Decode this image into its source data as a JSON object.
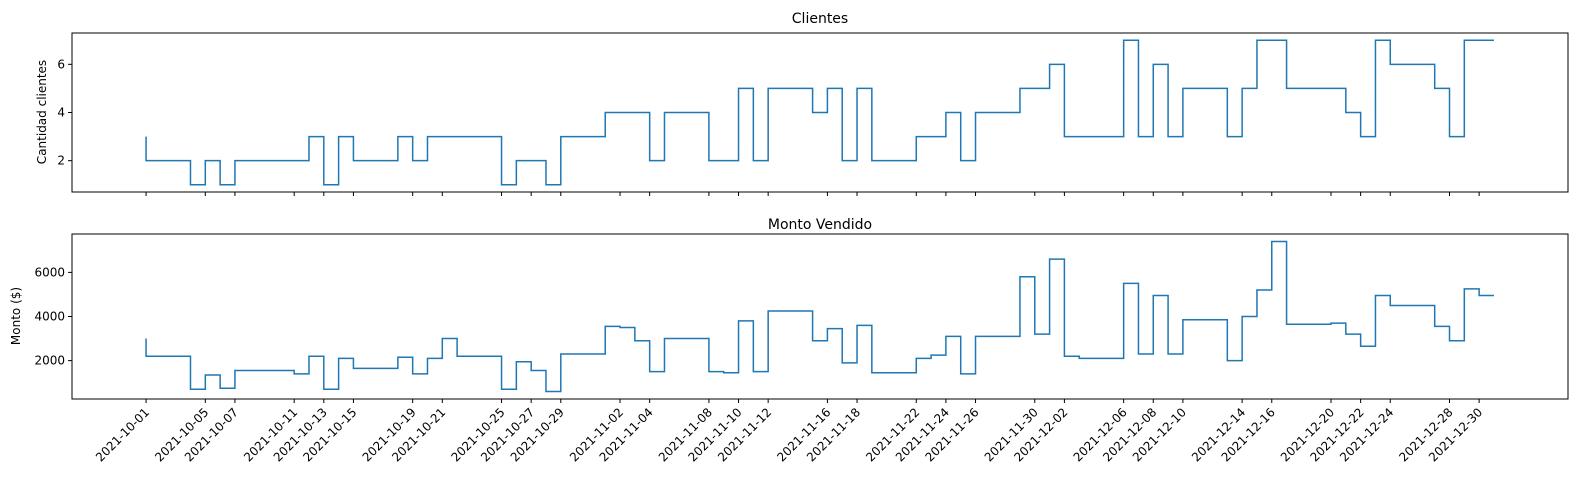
{
  "chart_data": [
    {
      "type": "line",
      "drawstyle": "steps-pre",
      "title": "Clientes",
      "ylabel": "Cantidad clientes",
      "x": [
        "2021-10-01",
        "2021-10-04",
        "2021-10-05",
        "2021-10-06",
        "2021-10-07",
        "2021-10-08",
        "2021-10-11",
        "2021-10-12",
        "2021-10-13",
        "2021-10-14",
        "2021-10-15",
        "2021-10-18",
        "2021-10-19",
        "2021-10-20",
        "2021-10-21",
        "2021-10-22",
        "2021-10-25",
        "2021-10-26",
        "2021-10-27",
        "2021-10-28",
        "2021-10-29",
        "2021-11-01",
        "2021-11-02",
        "2021-11-03",
        "2021-11-04",
        "2021-11-05",
        "2021-11-08",
        "2021-11-09",
        "2021-11-10",
        "2021-11-11",
        "2021-11-12",
        "2021-11-15",
        "2021-11-16",
        "2021-11-17",
        "2021-11-18",
        "2021-11-19",
        "2021-11-22",
        "2021-11-23",
        "2021-11-24",
        "2021-11-25",
        "2021-11-26",
        "2021-11-29",
        "2021-11-30",
        "2021-12-01",
        "2021-12-02",
        "2021-12-03",
        "2021-12-06",
        "2021-12-07",
        "2021-12-08",
        "2021-12-09",
        "2021-12-10",
        "2021-12-13",
        "2021-12-14",
        "2021-12-15",
        "2021-12-16",
        "2021-12-17",
        "2021-12-20",
        "2021-12-21",
        "2021-12-22",
        "2021-12-23",
        "2021-12-24",
        "2021-12-27",
        "2021-12-28",
        "2021-12-29",
        "2021-12-30",
        "2021-12-31"
      ],
      "values": [
        3,
        2,
        1,
        2,
        1,
        2,
        2,
        2,
        3,
        1,
        3,
        2,
        3,
        2,
        3,
        3,
        3,
        1,
        2,
        2,
        1,
        3,
        4,
        4,
        4,
        2,
        4,
        2,
        2,
        5,
        2,
        5,
        4,
        5,
        2,
        5,
        2,
        3,
        3,
        4,
        2,
        4,
        5,
        5,
        6,
        3,
        3,
        7,
        3,
        6,
        3,
        5,
        3,
        5,
        7,
        7,
        5,
        5,
        4,
        3,
        7,
        6,
        5,
        3,
        7,
        7
      ],
      "color": "#1f77b4",
      "xlim": [
        "2021-09-26",
        "2022-01-05"
      ],
      "ylim": [
        0.7,
        7.3
      ],
      "yticks": [
        2,
        4,
        6
      ]
    },
    {
      "type": "line",
      "drawstyle": "steps-pre",
      "title": "Monto Vendido",
      "ylabel": "Monto ($)",
      "x": [
        "2021-10-01",
        "2021-10-04",
        "2021-10-05",
        "2021-10-06",
        "2021-10-07",
        "2021-10-08",
        "2021-10-11",
        "2021-10-12",
        "2021-10-13",
        "2021-10-14",
        "2021-10-15",
        "2021-10-18",
        "2021-10-19",
        "2021-10-20",
        "2021-10-21",
        "2021-10-22",
        "2021-10-25",
        "2021-10-26",
        "2021-10-27",
        "2021-10-28",
        "2021-10-29",
        "2021-11-01",
        "2021-11-02",
        "2021-11-03",
        "2021-11-04",
        "2021-11-05",
        "2021-11-08",
        "2021-11-09",
        "2021-11-10",
        "2021-11-11",
        "2021-11-12",
        "2021-11-15",
        "2021-11-16",
        "2021-11-17",
        "2021-11-18",
        "2021-11-19",
        "2021-11-22",
        "2021-11-23",
        "2021-11-24",
        "2021-11-25",
        "2021-11-26",
        "2021-11-29",
        "2021-11-30",
        "2021-12-01",
        "2021-12-02",
        "2021-12-03",
        "2021-12-06",
        "2021-12-07",
        "2021-12-08",
        "2021-12-09",
        "2021-12-10",
        "2021-12-13",
        "2021-12-14",
        "2021-12-15",
        "2021-12-16",
        "2021-12-17",
        "2021-12-20",
        "2021-12-21",
        "2021-12-22",
        "2021-12-23",
        "2021-12-24",
        "2021-12-27",
        "2021-12-28",
        "2021-12-29",
        "2021-12-30",
        "2021-12-31"
      ],
      "values": [
        3000,
        2200,
        700,
        1350,
        750,
        1550,
        1550,
        1400,
        2200,
        700,
        2100,
        1650,
        2150,
        1400,
        2100,
        3000,
        2200,
        700,
        1950,
        1550,
        600,
        2300,
        3550,
        3500,
        2900,
        1500,
        3000,
        1500,
        1450,
        3800,
        1500,
        4250,
        2900,
        3450,
        1900,
        3600,
        1450,
        2100,
        2250,
        3100,
        1400,
        3100,
        5800,
        3200,
        6600,
        2200,
        2100,
        5500,
        2300,
        4950,
        2300,
        3850,
        2000,
        4000,
        5200,
        7400,
        3650,
        3700,
        3200,
        2650,
        4950,
        4500,
        3550,
        2900,
        5250,
        4950
      ],
      "color": "#1f77b4",
      "xlim": [
        "2021-09-26",
        "2022-01-05"
      ],
      "ylim": [
        260,
        7740
      ],
      "yticks": [
        2000,
        4000,
        6000
      ],
      "xticks": [
        "2021-10-01",
        "2021-10-05",
        "2021-10-07",
        "2021-10-11",
        "2021-10-13",
        "2021-10-15",
        "2021-10-19",
        "2021-10-21",
        "2021-10-25",
        "2021-10-27",
        "2021-10-29",
        "2021-11-02",
        "2021-11-04",
        "2021-11-08",
        "2021-11-10",
        "2021-11-12",
        "2021-11-16",
        "2021-11-18",
        "2021-11-22",
        "2021-11-24",
        "2021-11-26",
        "2021-11-30",
        "2021-12-02",
        "2021-12-06",
        "2021-12-08",
        "2021-12-10",
        "2021-12-14",
        "2021-12-16",
        "2021-12-20",
        "2021-12-22",
        "2021-12-24",
        "2021-12-28",
        "2021-12-30"
      ]
    }
  ]
}
